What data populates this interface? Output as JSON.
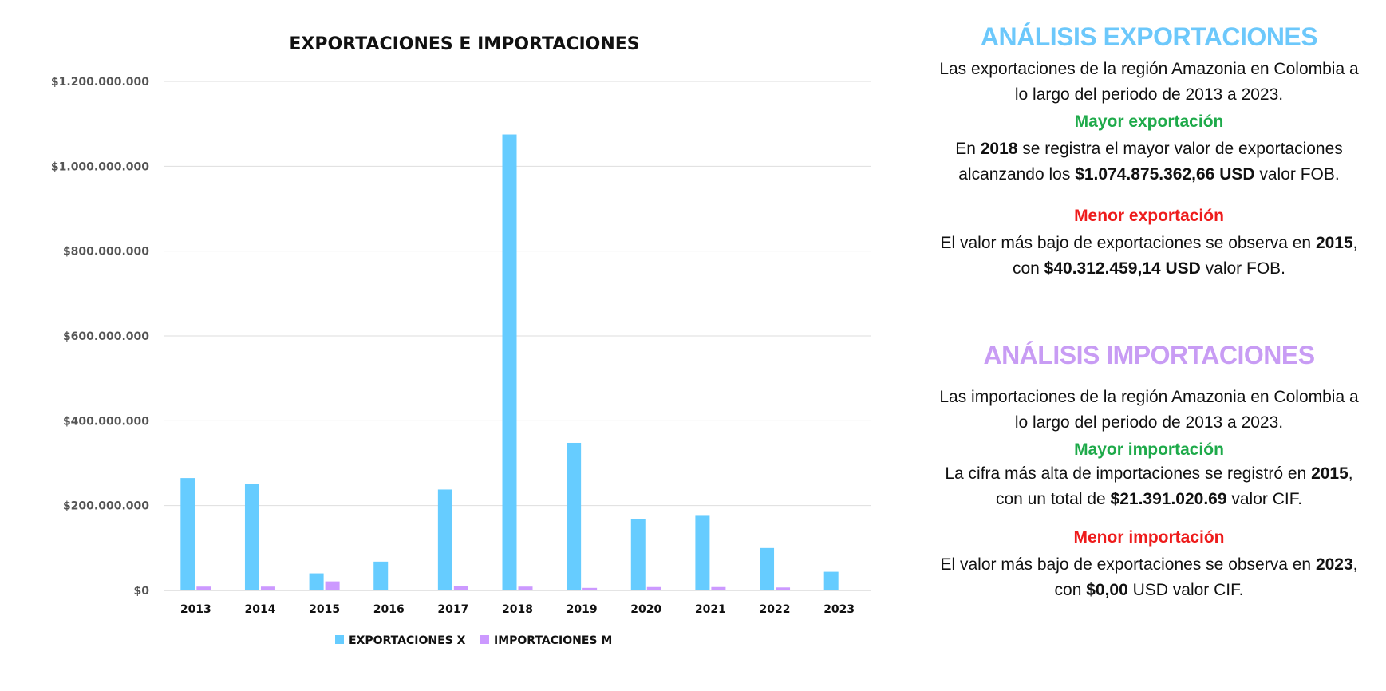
{
  "chart_data": {
    "type": "bar",
    "title": "EXPORTACIONES E IMPORTACIONES",
    "categories": [
      "2013",
      "2014",
      "2015",
      "2016",
      "2017",
      "2018",
      "2019",
      "2020",
      "2021",
      "2022",
      "2023"
    ],
    "series": [
      {
        "name": "EXPORTACIONES X",
        "color": "#66ccff",
        "values": [
          265000000,
          251000000,
          40312459.14,
          68000000,
          238000000,
          1074875362.66,
          348000000,
          168000000,
          176000000,
          100000000,
          44000000
        ]
      },
      {
        "name": "IMPORTACIONES M",
        "color": "#cc99ff",
        "values": [
          9000000,
          9000000,
          21391020.69,
          1500000,
          11000000,
          9000000,
          6000000,
          8000000,
          8000000,
          7000000,
          0
        ]
      }
    ],
    "yticks": [
      {
        "value": 0,
        "label": "$0"
      },
      {
        "value": 200000000,
        "label": "$200.000.000"
      },
      {
        "value": 400000000,
        "label": "$400.000.000"
      },
      {
        "value": 600000000,
        "label": "$600.000.000"
      },
      {
        "value": 800000000,
        "label": "$800.000.000"
      },
      {
        "value": 1000000000,
        "label": "$1.000.000.000"
      },
      {
        "value": 1200000000,
        "label": "$1.200.000.000"
      }
    ],
    "ylim": [
      0,
      1200000000
    ],
    "grid": true,
    "legend": "bottom"
  },
  "analysis": {
    "exports": {
      "title": "ANÁLISIS EXPORTACIONES",
      "intro": "Las exportaciones de la región Amazonia en Colombia a lo largo del periodo de 2013 a 2023.",
      "max_heading": "Mayor exportación",
      "max_pre": "En ",
      "max_year": "2018",
      "max_mid": " se registra el mayor valor de exportaciones alcanzando los ",
      "max_value": "$1.074.875.362,66 USD",
      "max_post": " valor FOB.",
      "min_heading": "Menor exportación",
      "min_pre": "El valor más bajo de exportaciones se observa en ",
      "min_year": "2015",
      "min_mid": ", con ",
      "min_value": "$40.312.459,14 USD",
      "min_post": " valor FOB."
    },
    "imports": {
      "title": "ANÁLISIS IMPORTACIONES",
      "intro": "Las importaciones de la región Amazonia en Colombia a lo largo del periodo de 2013 a 2023.",
      "max_heading": "Mayor importación",
      "max_pre": "La cifra más alta de importaciones se registró en ",
      "max_year": "2015",
      "max_mid": ", con un total de ",
      "max_value": "$21.391.020.69",
      "max_post": " valor CIF.",
      "min_heading": "Menor importación",
      "min_pre": "El valor más bajo de exportaciones se observa en ",
      "min_year": "2023",
      "min_mid": ", con ",
      "min_value": "$0,00",
      "min_post": " USD valor CIF."
    }
  }
}
